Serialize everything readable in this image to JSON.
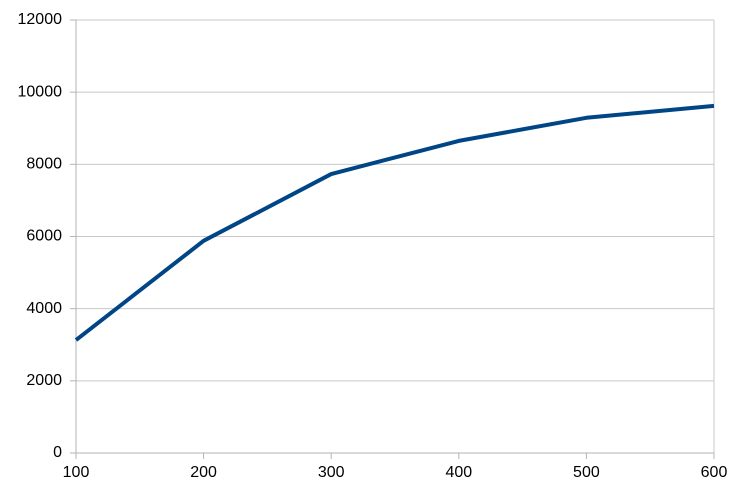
{
  "chart_data": {
    "type": "line",
    "x": [
      100,
      200,
      300,
      400,
      500,
      600
    ],
    "series": [
      {
        "color": "#004586",
        "values": [
          3130,
          5880,
          7730,
          8650,
          9290,
          9620
        ]
      }
    ],
    "xlim": [
      100,
      600
    ],
    "xticks": [
      100,
      200,
      300,
      400,
      500,
      600
    ],
    "ylim": [
      0,
      12000
    ],
    "yticks": [
      0,
      2000,
      4000,
      6000,
      8000,
      10000,
      12000
    ],
    "grid": true
  }
}
